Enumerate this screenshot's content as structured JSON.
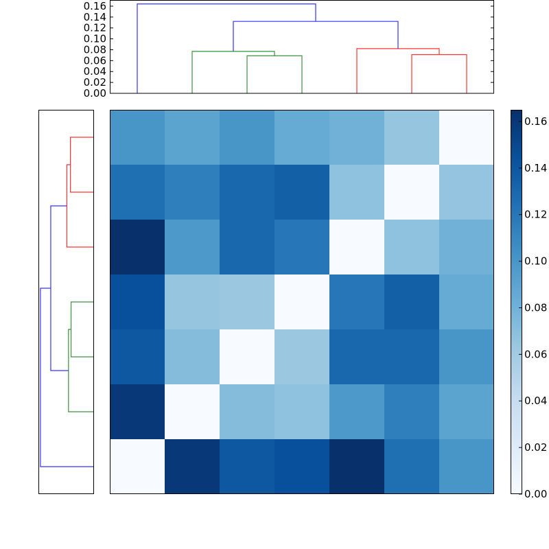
{
  "chart_data": [
    {
      "type": "dendrogram",
      "name": "top-dendrogram",
      "orientation": "top",
      "ylim": [
        0.0,
        0.17
      ],
      "yticks": [
        "0.00",
        "0.02",
        "0.04",
        "0.06",
        "0.08",
        "0.10",
        "0.12",
        "0.14",
        "0.16"
      ],
      "leaves": 7,
      "links": [
        {
          "left": 3,
          "right": 4,
          "height": 0.069,
          "color": "#3a923a"
        },
        {
          "left": 2,
          "right": "3-4",
          "height": 0.077,
          "color": "#3a923a"
        },
        {
          "left": 6,
          "right": 7,
          "height": 0.071,
          "color": "#ff3333"
        },
        {
          "left": 5,
          "right": "6-7",
          "height": 0.082,
          "color": "#ff3333"
        },
        {
          "left": "2-4",
          "right": "5-7",
          "height": 0.132,
          "color": "#3333ff"
        },
        {
          "left": 1,
          "right": "2-7",
          "height": 0.164,
          "color": "#3333ff"
        }
      ]
    },
    {
      "type": "dendrogram",
      "name": "left-dendrogram",
      "orientation": "left",
      "leaves": 7,
      "links": [
        {
          "top": 1,
          "bottom": 2,
          "height": 0.071,
          "color": "#ff3333"
        },
        {
          "top": "1-2",
          "bottom": 3,
          "height": 0.082,
          "color": "#ff3333"
        },
        {
          "top": 4,
          "bottom": 5,
          "height": 0.069,
          "color": "#3a923a"
        },
        {
          "top": "4-5",
          "bottom": 6,
          "height": 0.077,
          "color": "#3a923a"
        },
        {
          "top": "1-3",
          "bottom": "4-6",
          "height": 0.132,
          "color": "#3333ff"
        },
        {
          "top": "1-6",
          "bottom": 7,
          "height": 0.164,
          "color": "#3333ff"
        }
      ]
    },
    {
      "type": "heatmap",
      "name": "distance-matrix",
      "colormap": "Blues",
      "vmin": 0.0,
      "vmax": 0.165,
      "rows": 7,
      "cols": 7,
      "values": [
        [
          0.1,
          0.09,
          0.1,
          0.085,
          0.08,
          0.065,
          0.0
        ],
        [
          0.125,
          0.115,
          0.13,
          0.135,
          0.068,
          0.0,
          0.066
        ],
        [
          0.165,
          0.098,
          0.13,
          0.12,
          0.0,
          0.068,
          0.08
        ],
        [
          0.145,
          0.065,
          0.063,
          0.0,
          0.12,
          0.135,
          0.085
        ],
        [
          0.14,
          0.072,
          0.0,
          0.063,
          0.13,
          0.13,
          0.1
        ],
        [
          0.16,
          0.0,
          0.072,
          0.068,
          0.098,
          0.115,
          0.09
        ],
        [
          0.0,
          0.16,
          0.14,
          0.145,
          0.165,
          0.125,
          0.1
        ]
      ]
    },
    {
      "type": "colorbar",
      "name": "colorbar",
      "colormap": "Blues",
      "ticks": [
        "0.00",
        "0.02",
        "0.04",
        "0.06",
        "0.08",
        "0.10",
        "0.12",
        "0.14",
        "0.16"
      ],
      "range": [
        0.0,
        0.165
      ]
    }
  ],
  "colors": {
    "cluster_red": "#ff3333",
    "cluster_green": "#3a923a",
    "above_threshold_blue": "#3333ff"
  }
}
